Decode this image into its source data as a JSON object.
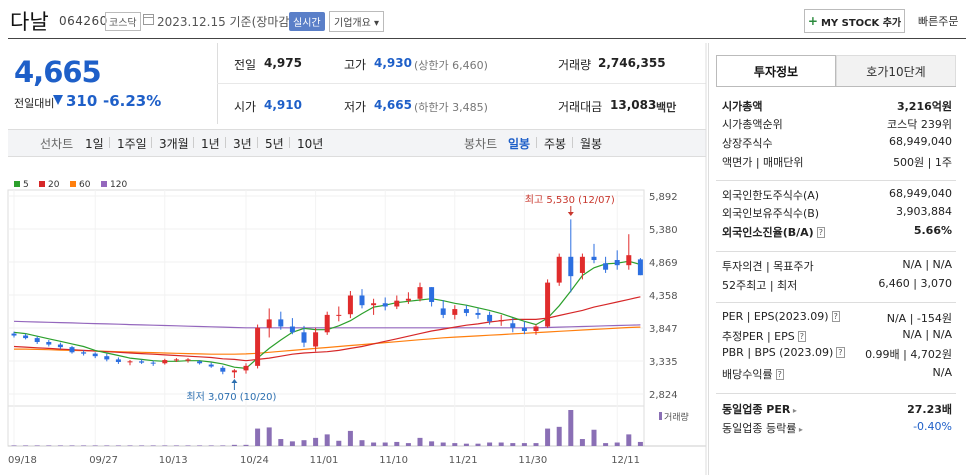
{
  "header": {
    "name": "다날",
    "code": "064260",
    "market": "코스닥",
    "date": "2023.12.15 기준(장마감)",
    "realtime": "실시간",
    "overview": "기업개요 ▾",
    "mystock": "MY STOCK 추가",
    "mystock_plus": "+",
    "quick_order": "빠른주문"
  },
  "price": {
    "current": "4,665",
    "prev_label": "전일대비",
    "change": "310",
    "change_pct": "-6.23%"
  },
  "quote": {
    "prev_close_label": "전일",
    "prev_close": "4,975",
    "high_label": "고가",
    "high": "4,930",
    "upper_limit": "(상한가 6,460)",
    "volume_label": "거래량",
    "volume": "2,746,355",
    "open_label": "시가",
    "open": "4,910",
    "low_label": "저가",
    "low": "4,665",
    "lower_limit": "(하한가 3,485)",
    "amount_label": "거래대금",
    "amount": "13,083",
    "amount_unit": "백만"
  },
  "tabs": {
    "period_label": "선차트",
    "periods": [
      "1일",
      "1주일",
      "3개월",
      "1년",
      "3년",
      "5년",
      "10년"
    ],
    "candle_label": "봉차트",
    "candles": [
      "일봉",
      "주봉",
      "월봉"
    ],
    "active_candle": "일봉"
  },
  "chart_data": {
    "type": "candlestick",
    "legend": [
      {
        "name": "5",
        "color": "#2ca02c"
      },
      {
        "name": "20",
        "color": "#d62728"
      },
      {
        "name": "60",
        "color": "#ff7f0e"
      },
      {
        "name": "120",
        "color": "#9467bd"
      }
    ],
    "y_ticks": [
      "5,892",
      "5,380",
      "4,869",
      "4,358",
      "3,847",
      "3,335",
      "2,824"
    ],
    "ylim": [
      2824,
      5892
    ],
    "x_ticks": [
      "09/18",
      "09/27",
      "10/13",
      "10/24",
      "11/01",
      "11/10",
      "11/21",
      "11/30",
      "12/11"
    ],
    "x_tick_idx": [
      0,
      7,
      13,
      20,
      26,
      32,
      38,
      44,
      52
    ],
    "max_label": "최고 5,530 (12/07)",
    "min_label": "최저 3,070 (10/20)",
    "volume_label": "거래량",
    "candles": [
      [
        3760,
        3790,
        3700,
        3730
      ],
      [
        3730,
        3760,
        3670,
        3690
      ],
      [
        3690,
        3720,
        3600,
        3630
      ],
      [
        3630,
        3660,
        3560,
        3590
      ],
      [
        3590,
        3620,
        3520,
        3550
      ],
      [
        3550,
        3570,
        3450,
        3470
      ],
      [
        3470,
        3500,
        3420,
        3450
      ],
      [
        3450,
        3470,
        3380,
        3410
      ],
      [
        3410,
        3450,
        3330,
        3360
      ],
      [
        3360,
        3390,
        3290,
        3320
      ],
      [
        3320,
        3350,
        3270,
        3330
      ],
      [
        3330,
        3360,
        3290,
        3310
      ],
      [
        3310,
        3340,
        3260,
        3300
      ],
      [
        3300,
        3370,
        3280,
        3350
      ],
      [
        3350,
        3380,
        3320,
        3360
      ],
      [
        3340,
        3380,
        3310,
        3360
      ],
      [
        3330,
        3350,
        3280,
        3300
      ],
      [
        3280,
        3310,
        3230,
        3250
      ],
      [
        3230,
        3260,
        3130,
        3170
      ],
      [
        3160,
        3210,
        3070,
        3190
      ],
      [
        3190,
        3300,
        3140,
        3260
      ],
      [
        3260,
        3900,
        3220,
        3850
      ],
      [
        3850,
        4150,
        3700,
        3980
      ],
      [
        3980,
        4100,
        3820,
        3870
      ],
      [
        3870,
        4000,
        3750,
        3780
      ],
      [
        3780,
        3880,
        3550,
        3620
      ],
      [
        3560,
        3850,
        3480,
        3780
      ],
      [
        3780,
        4100,
        3740,
        4050
      ],
      [
        4050,
        4180,
        3950,
        4050
      ],
      [
        4060,
        4420,
        4000,
        4350
      ],
      [
        4350,
        4450,
        4150,
        4200
      ],
      [
        4200,
        4300,
        4050,
        4230
      ],
      [
        4230,
        4320,
        4120,
        4180
      ],
      [
        4180,
        4350,
        4140,
        4270
      ],
      [
        4270,
        4400,
        4220,
        4300
      ],
      [
        4300,
        4550,
        4260,
        4480
      ],
      [
        4480,
        4480,
        4180,
        4250
      ],
      [
        4150,
        4280,
        4000,
        4050
      ],
      [
        4050,
        4200,
        3980,
        4140
      ],
      [
        4140,
        4200,
        4030,
        4080
      ],
      [
        4080,
        4150,
        3990,
        4050
      ],
      [
        4050,
        4100,
        3900,
        3950
      ],
      [
        3950,
        4050,
        3880,
        3970
      ],
      [
        3920,
        4000,
        3780,
        3850
      ],
      [
        3850,
        3950,
        3750,
        3800
      ],
      [
        3800,
        3900,
        3740,
        3870
      ],
      [
        3870,
        4600,
        3850,
        4550
      ],
      [
        4550,
        5000,
        4500,
        4950
      ],
      [
        4950,
        5530,
        4400,
        4650
      ],
      [
        4700,
        5000,
        4600,
        4950
      ],
      [
        4950,
        5150,
        4850,
        4900
      ],
      [
        4850,
        4950,
        4700,
        4750
      ],
      [
        4900,
        5050,
        4750,
        4820
      ],
      [
        4820,
        5300,
        4750,
        4975
      ],
      [
        4910,
        4930,
        4665,
        4665
      ]
    ],
    "ma5": [
      3780,
      3760,
      3720,
      3680,
      3640,
      3600,
      3560,
      3500,
      3460,
      3420,
      3380,
      3360,
      3340,
      3330,
      3330,
      3340,
      3340,
      3320,
      3290,
      3240,
      3220,
      3380,
      3530,
      3660,
      3780,
      3840,
      3820,
      3820,
      3880,
      3960,
      4070,
      4170,
      4200,
      4240,
      4260,
      4280,
      4300,
      4270,
      4230,
      4200,
      4160,
      4120,
      4070,
      4010,
      3950,
      3900,
      4000,
      4190,
      4420,
      4660,
      4780,
      4840,
      4850,
      4880,
      4830
    ],
    "ma20": [
      3560,
      3550,
      3540,
      3530,
      3520,
      3510,
      3500,
      3490,
      3480,
      3470,
      3460,
      3450,
      3440,
      3430,
      3420,
      3410,
      3400,
      3390,
      3370,
      3360,
      3340,
      3360,
      3380,
      3410,
      3440,
      3460,
      3470,
      3480,
      3500,
      3530,
      3560,
      3600,
      3640,
      3680,
      3720,
      3760,
      3800,
      3830,
      3860,
      3890,
      3910,
      3940,
      3960,
      3980,
      3980,
      3980,
      4000,
      4040,
      4080,
      4120,
      4170,
      4210,
      4250,
      4290,
      4330
    ],
    "ma60": [
      3520,
      3520,
      3515,
      3510,
      3505,
      3500,
      3495,
      3490,
      3485,
      3480,
      3475,
      3470,
      3465,
      3460,
      3455,
      3450,
      3445,
      3440,
      3440,
      3440,
      3445,
      3455,
      3470,
      3485,
      3500,
      3515,
      3530,
      3545,
      3560,
      3575,
      3590,
      3605,
      3620,
      3635,
      3650,
      3665,
      3680,
      3695,
      3705,
      3715,
      3725,
      3735,
      3745,
      3755,
      3765,
      3775,
      3785,
      3795,
      3805,
      3815,
      3825,
      3835,
      3845,
      3855,
      3860
    ],
    "ma120": [
      3950,
      3945,
      3940,
      3935,
      3930,
      3925,
      3920,
      3915,
      3910,
      3905,
      3900,
      3895,
      3890,
      3885,
      3880,
      3875,
      3870,
      3865,
      3860,
      3855,
      3850,
      3850,
      3850,
      3850,
      3850,
      3850,
      3850,
      3850,
      3850,
      3850,
      3850,
      3850,
      3850,
      3850,
      3850,
      3850,
      3850,
      3850,
      3850,
      3850,
      3850,
      3850,
      3850,
      3850,
      3850,
      3850,
      3855,
      3860,
      3865,
      3870,
      3875,
      3880,
      3885,
      3890,
      3895
    ],
    "volume": [
      1,
      1,
      1,
      1,
      1,
      1,
      1,
      1,
      1,
      1,
      1,
      1,
      1,
      1,
      1,
      1,
      1,
      1,
      1,
      2,
      2,
      30,
      32,
      12,
      8,
      10,
      14,
      20,
      9,
      26,
      10,
      6,
      6,
      7,
      5,
      14,
      8,
      6,
      5,
      4,
      4,
      6,
      6,
      5,
      5,
      5,
      30,
      33,
      62,
      12,
      28,
      5,
      6,
      20,
      7
    ]
  },
  "info": {
    "tab_active": "투자정보",
    "tab_other": "호가10단계",
    "rows": [
      {
        "k": "시가총액",
        "v": "3,216억원",
        "bold": true
      },
      {
        "k": "시가총액순위",
        "v": "코스닥 239위"
      },
      {
        "k": "상장주식수",
        "v": "68,949,040"
      },
      {
        "k": "액면가 | 매매단위",
        "v": "500원 | 1주"
      },
      {
        "k": "외국인한도주식수(A)",
        "v": "68,949,040"
      },
      {
        "k": "외국인보유주식수(B)",
        "v": "3,903,884"
      },
      {
        "k": "외국인소진율(B/A)",
        "v": "5.66%",
        "bold": true
      },
      {
        "k": "투자의견 | 목표주가",
        "v": "N/A | N/A"
      },
      {
        "k": "52주최고 | 최저",
        "v": "6,460 | 3,070"
      },
      {
        "k": "PER | EPS(2023.09)",
        "v": "N/A | -154원"
      },
      {
        "k": "추정PER | EPS",
        "v": "N/A | N/A"
      },
      {
        "k": "PBR | BPS (2023.09)",
        "v": "0.99배 | 4,702원"
      },
      {
        "k": "배당수익률",
        "v": "N/A"
      },
      {
        "k": "동일업종 PER",
        "v": "27.23배",
        "bold": true
      },
      {
        "k": "동일업종 등락률",
        "v": "-0.40%",
        "blue": true
      }
    ]
  }
}
